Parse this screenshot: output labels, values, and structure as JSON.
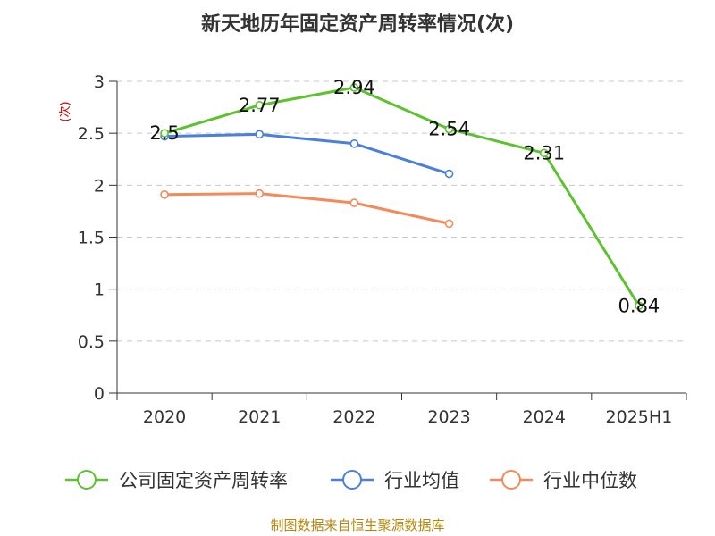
{
  "chart_data": {
    "type": "line",
    "title": "新天地历年固定资产周转率情况(次)",
    "ylabel": "(次)",
    "categories": [
      "2020",
      "2021",
      "2022",
      "2023",
      "2024",
      "2025H1"
    ],
    "ylim": [
      0,
      3
    ],
    "yticks": [
      "0",
      "0.5",
      "1",
      "1.5",
      "2",
      "2.5",
      "3"
    ],
    "grid": "horizontal-dashed",
    "legend_position": "bottom",
    "series": [
      {
        "name": "公司固定资产周转率",
        "color": "#5cc22e",
        "values": [
          2.5,
          2.77,
          2.94,
          2.54,
          2.31,
          0.84
        ],
        "labels": [
          "2.5",
          "2.77",
          "2.94",
          "2.54",
          "2.31",
          "0.84"
        ]
      },
      {
        "name": "行业均值",
        "color": "#4a7fdb",
        "values": [
          2.47,
          2.49,
          2.4,
          2.11,
          null,
          null
        ]
      },
      {
        "name": "行业中位数",
        "color": "#f5895a",
        "values": [
          1.91,
          1.92,
          1.83,
          1.63,
          null,
          null
        ]
      }
    ]
  },
  "source": "制图数据来自恒生聚源数据库"
}
